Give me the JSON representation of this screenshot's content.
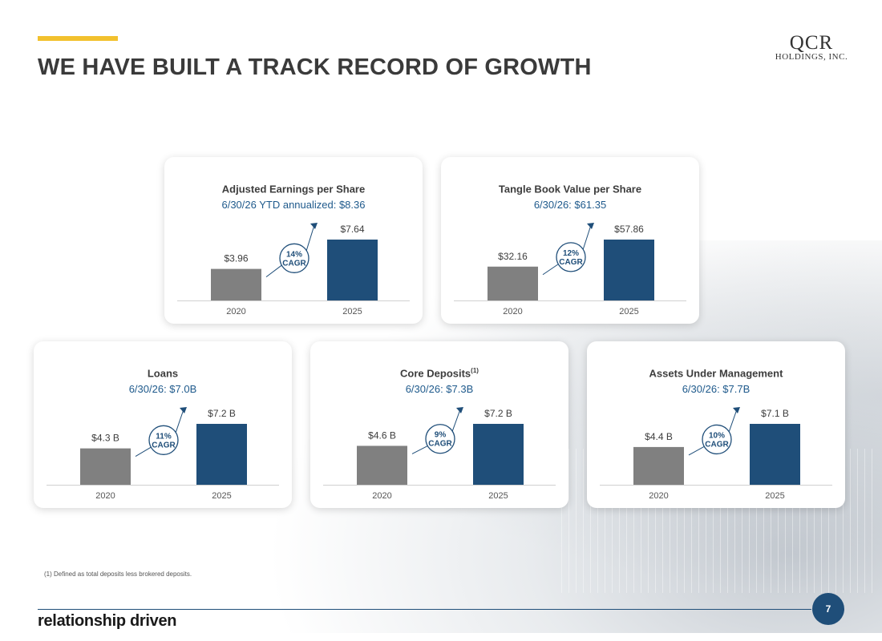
{
  "page": {
    "title": "WE HAVE BUILT A TRACK RECORD OF GROWTH",
    "logo_main": "QCR",
    "logo_sub": "HOLDINGS, INC.",
    "footnote": "(1)     Defined as total deposits less brokered deposits.",
    "footer_text": "relationship driven",
    "page_number": "7"
  },
  "colors": {
    "accent": "#f2c12e",
    "bar_2020": "#808080",
    "bar_2025": "#1f4e79",
    "subtitle": "#1f5a8c"
  },
  "chart_data": [
    {
      "type": "bar",
      "title": "Adjusted Earnings per Share",
      "title_sup": "",
      "subtitle": "6/30/26 YTD annualized: $8.36",
      "categories": [
        "2020",
        "2025"
      ],
      "values": [
        3.96,
        7.64
      ],
      "labels": [
        "$3.96",
        "$7.64"
      ],
      "cagr": [
        "14%",
        "CAGR"
      ]
    },
    {
      "type": "bar",
      "title": "Tangle Book Value per Share",
      "title_sup": "",
      "subtitle": "6/30/26: $61.35",
      "categories": [
        "2020",
        "2025"
      ],
      "values": [
        32.16,
        57.86
      ],
      "labels": [
        "$32.16",
        "$57.86"
      ],
      "cagr": [
        "12%",
        "CAGR"
      ]
    },
    {
      "type": "bar",
      "title": "Loans",
      "title_sup": "",
      "subtitle": "6/30/26: $7.0B",
      "categories": [
        "2020",
        "2025"
      ],
      "values": [
        4.3,
        7.2
      ],
      "labels": [
        "$4.3 B",
        "$7.2 B"
      ],
      "cagr": [
        "11%",
        "CAGR"
      ]
    },
    {
      "type": "bar",
      "title": "Core Deposits",
      "title_sup": "(1)",
      "subtitle": "6/30/26: $7.3B",
      "categories": [
        "2020",
        "2025"
      ],
      "values": [
        4.6,
        7.2
      ],
      "labels": [
        "$4.6 B",
        "$7.2 B"
      ],
      "cagr": [
        "9%",
        "CAGR"
      ]
    },
    {
      "type": "bar",
      "title": "Assets Under Management",
      "title_sup": "",
      "subtitle": "6/30/26: $7.7B",
      "categories": [
        "2020",
        "2025"
      ],
      "values": [
        4.4,
        7.1
      ],
      "labels": [
        "$4.4 B",
        "$7.1 B"
      ],
      "cagr": [
        "10%",
        "CAGR"
      ]
    }
  ]
}
